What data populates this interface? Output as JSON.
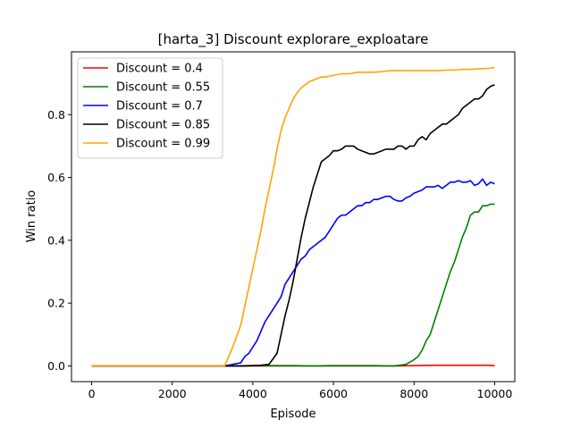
{
  "chart_data": {
    "type": "line",
    "title": "[harta_3] Discount  explorare_exploatare",
    "xlabel": "Episode",
    "ylabel": "Win ratio",
    "xlim": [
      -500,
      10500
    ],
    "ylim": [
      -0.05,
      1.0
    ],
    "xticks": [
      0,
      2000,
      4000,
      6000,
      8000,
      10000
    ],
    "yticks": [
      0.0,
      0.2,
      0.4,
      0.6,
      0.8
    ],
    "xtick_labels": [
      "0",
      "2000",
      "4000",
      "6000",
      "8000",
      "10000"
    ],
    "ytick_labels": [
      "0.0",
      "0.2",
      "0.4",
      "0.6",
      "0.8"
    ],
    "grid": false,
    "legend_position": "top-left",
    "series": [
      {
        "name": "Discount = 0.4",
        "color": "#ff0000",
        "x": [
          0,
          1000,
          2000,
          3000,
          4000,
          5000,
          6000,
          7000,
          7500,
          8000,
          8500,
          9000,
          9500,
          9800,
          10000
        ],
        "y": [
          0.0,
          0.0,
          0.0,
          0.0,
          0.0,
          0.0,
          0.0,
          0.0,
          0.0,
          0.001,
          0.002,
          0.002,
          0.002,
          0.002,
          0.001
        ]
      },
      {
        "name": "Discount = 0.55",
        "color": "#008000",
        "x": [
          0,
          1000,
          2000,
          3000,
          3300,
          4000,
          4500,
          5000,
          5500,
          6000,
          6500,
          7000,
          7500,
          7800,
          8000,
          8100,
          8200,
          8300,
          8400,
          8500,
          8600,
          8700,
          8800,
          8900,
          9000,
          9100,
          9200,
          9300,
          9400,
          9500,
          9600,
          9700,
          9800,
          9900,
          10000
        ],
        "y": [
          0.0,
          0.0,
          0.0,
          0.0,
          0.0,
          0.001,
          0.001,
          0.001,
          0.0,
          0.001,
          0.001,
          0.001,
          0.0,
          0.005,
          0.02,
          0.03,
          0.05,
          0.08,
          0.1,
          0.14,
          0.18,
          0.22,
          0.26,
          0.3,
          0.33,
          0.37,
          0.41,
          0.44,
          0.48,
          0.49,
          0.49,
          0.51,
          0.51,
          0.515,
          0.515
        ]
      },
      {
        "name": "Discount = 0.7",
        "color": "#0000ff",
        "x": [
          0,
          1000,
          2000,
          3000,
          3300,
          3500,
          3700,
          3800,
          3900,
          4000,
          4100,
          4200,
          4300,
          4400,
          4500,
          4600,
          4700,
          4800,
          4900,
          5000,
          5100,
          5200,
          5300,
          5400,
          5500,
          5600,
          5700,
          5800,
          5900,
          6000,
          6100,
          6200,
          6300,
          6400,
          6500,
          6600,
          6700,
          6800,
          6900,
          7000,
          7100,
          7200,
          7300,
          7400,
          7500,
          7600,
          7700,
          7800,
          7900,
          8000,
          8100,
          8200,
          8300,
          8400,
          8500,
          8600,
          8700,
          8800,
          8900,
          9000,
          9100,
          9200,
          9300,
          9400,
          9500,
          9600,
          9700,
          9800,
          9900,
          10000
        ],
        "y": [
          0.0,
          0.0,
          0.0,
          0.0,
          0.0,
          0.005,
          0.01,
          0.03,
          0.04,
          0.06,
          0.08,
          0.11,
          0.14,
          0.16,
          0.18,
          0.2,
          0.22,
          0.26,
          0.28,
          0.3,
          0.32,
          0.34,
          0.35,
          0.37,
          0.38,
          0.39,
          0.4,
          0.41,
          0.43,
          0.45,
          0.47,
          0.48,
          0.48,
          0.49,
          0.5,
          0.51,
          0.51,
          0.52,
          0.52,
          0.53,
          0.53,
          0.535,
          0.54,
          0.54,
          0.53,
          0.525,
          0.525,
          0.535,
          0.54,
          0.55,
          0.555,
          0.56,
          0.57,
          0.57,
          0.57,
          0.575,
          0.565,
          0.575,
          0.585,
          0.585,
          0.59,
          0.585,
          0.585,
          0.59,
          0.575,
          0.58,
          0.595,
          0.575,
          0.585,
          0.58
        ]
      },
      {
        "name": "Discount = 0.85",
        "color": "#000000",
        "x": [
          0,
          1000,
          2000,
          3000,
          3300,
          3500,
          3700,
          3800,
          4000,
          4200,
          4400,
          4600,
          4700,
          4800,
          4900,
          5000,
          5100,
          5200,
          5300,
          5400,
          5500,
          5600,
          5700,
          5800,
          5900,
          6000,
          6100,
          6200,
          6300,
          6400,
          6500,
          6600,
          6700,
          6800,
          6900,
          7000,
          7100,
          7200,
          7300,
          7400,
          7500,
          7600,
          7700,
          7800,
          7900,
          8000,
          8100,
          8200,
          8300,
          8400,
          8500,
          8600,
          8700,
          8800,
          8900,
          9000,
          9100,
          9200,
          9300,
          9400,
          9500,
          9600,
          9700,
          9800,
          9900,
          10000
        ],
        "y": [
          0.0,
          0.0,
          0.0,
          0.0,
          0.0,
          0.0,
          0.0,
          0.0,
          0.001,
          0.002,
          0.005,
          0.04,
          0.1,
          0.16,
          0.21,
          0.27,
          0.34,
          0.41,
          0.47,
          0.52,
          0.57,
          0.61,
          0.65,
          0.66,
          0.67,
          0.685,
          0.685,
          0.69,
          0.7,
          0.7,
          0.7,
          0.69,
          0.685,
          0.68,
          0.675,
          0.675,
          0.68,
          0.685,
          0.69,
          0.69,
          0.69,
          0.7,
          0.7,
          0.69,
          0.7,
          0.7,
          0.72,
          0.73,
          0.72,
          0.74,
          0.75,
          0.76,
          0.77,
          0.77,
          0.78,
          0.79,
          0.8,
          0.82,
          0.83,
          0.84,
          0.85,
          0.85,
          0.86,
          0.88,
          0.89,
          0.895
        ]
      },
      {
        "name": "Discount = 0.99",
        "color": "#ffa500",
        "x": [
          0,
          1000,
          2000,
          3000,
          3300,
          3500,
          3700,
          3800,
          3900,
          4000,
          4100,
          4200,
          4300,
          4400,
          4500,
          4600,
          4700,
          4800,
          4900,
          5000,
          5100,
          5200,
          5300,
          5400,
          5500,
          5600,
          5700,
          5800,
          6000,
          6200,
          6400,
          6600,
          6800,
          7000,
          7200,
          7400,
          7600,
          7800,
          8000,
          8200,
          8400,
          8600,
          8800,
          9000,
          9200,
          9400,
          9600,
          9800,
          10000
        ],
        "y": [
          0.0,
          0.0,
          0.0,
          0.0,
          0.0,
          0.06,
          0.13,
          0.19,
          0.25,
          0.31,
          0.37,
          0.43,
          0.5,
          0.56,
          0.62,
          0.69,
          0.75,
          0.79,
          0.82,
          0.85,
          0.87,
          0.885,
          0.895,
          0.905,
          0.91,
          0.915,
          0.92,
          0.92,
          0.925,
          0.93,
          0.93,
          0.935,
          0.935,
          0.935,
          0.937,
          0.94,
          0.94,
          0.94,
          0.94,
          0.94,
          0.94,
          0.94,
          0.942,
          0.942,
          0.944,
          0.944,
          0.946,
          0.947,
          0.95
        ]
      }
    ]
  }
}
